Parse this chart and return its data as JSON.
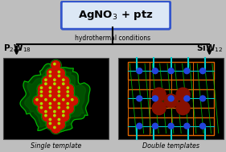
{
  "arrow_label": "hydrothermal conditions",
  "left_label": "P$_2$W$_{18}$",
  "right_label": "SiW$_{12}$",
  "bottom_left": "Single template",
  "bottom_right": "Double templates",
  "bg_color": "#bebebe",
  "box_fill": "#dce8f5",
  "box_edge": "#3355cc",
  "title_fontsize": 9.5,
  "label_fontsize": 7.5,
  "arrow_fontsize": 5.5,
  "caption_fontsize": 5.8
}
